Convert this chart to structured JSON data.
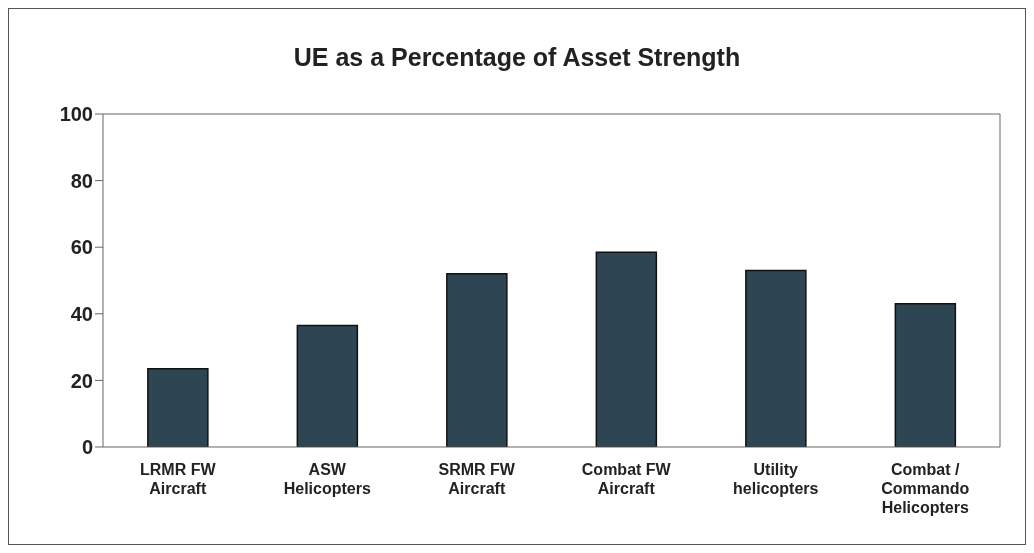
{
  "chart_data": {
    "type": "bar",
    "title": "UE as a Percentage of Asset Strength",
    "categories": [
      "LRMR FW Aircraft",
      "ASW Helicopters",
      "SRMR FW Aircraft",
      "Combat FW Aircraft",
      "Utility helicopters",
      "Combat / Commando Helicopters"
    ],
    "values": [
      23.5,
      36.5,
      52,
      58.5,
      53,
      43
    ],
    "color": "#2e4653",
    "ylim": [
      0,
      100
    ],
    "yticks": [
      0,
      20,
      40,
      60,
      80,
      100
    ],
    "grid": false,
    "legend": false
  }
}
